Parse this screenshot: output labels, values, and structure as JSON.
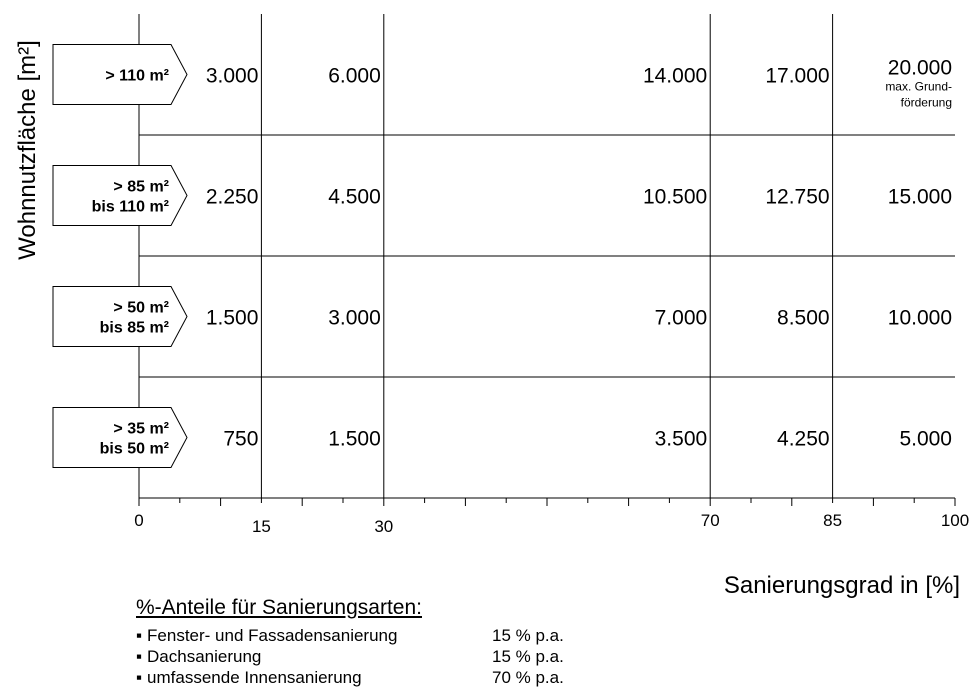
{
  "chart_data": {
    "type": "table",
    "ylabel": "Wohnnutzfläche  [m²]",
    "xlabel": "Sanierungsgrad in [%]",
    "x_ticks": [
      "0",
      "15",
      "30",
      "70",
      "85",
      "100"
    ],
    "x_tick_values": [
      0,
      15,
      30,
      70,
      85,
      100
    ],
    "xlim": [
      0,
      100
    ],
    "rows": [
      {
        "label": [
          "> 110 m²"
        ],
        "values": [
          "3.000",
          "6.000",
          "14.000",
          "17.000",
          "20.000"
        ],
        "note": [
          "max. Grund-",
          "förderung"
        ]
      },
      {
        "label": [
          "> 85 m²",
          "bis 110 m²"
        ],
        "values": [
          "2.250",
          "4.500",
          "10.500",
          "12.750",
          "15.000"
        ]
      },
      {
        "label": [
          "> 50 m²",
          "bis 85 m²"
        ],
        "values": [
          "1.500",
          "3.000",
          "7.000",
          "8.500",
          "10.000"
        ]
      },
      {
        "label": [
          "> 35 m²",
          "bis 50 m²"
        ],
        "values": [
          "750",
          "1.500",
          "3.500",
          "4.250",
          "5.000"
        ]
      }
    ]
  },
  "legend": {
    "title": "%-Anteile für Sanierungsarten:",
    "items": [
      {
        "name": "Fenster- und Fassadensanierung",
        "pct": "15 % p.a."
      },
      {
        "name": "Dachsanierung",
        "pct": "15 % p.a."
      },
      {
        "name": "umfassende Innensanierung",
        "pct": "70 % p.a."
      }
    ]
  }
}
